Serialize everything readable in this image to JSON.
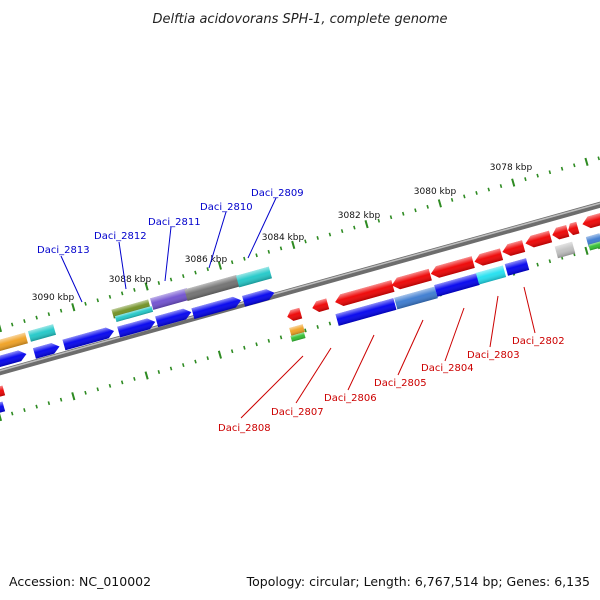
{
  "title": "Delftia acidovorans SPH-1, complete genome",
  "footer": {
    "accession": "Accession: NC_010002",
    "topology": "Topology: circular; Length: 6,767,514 bp; Genes: 6,135"
  },
  "kbp_ticks": [
    "3078 kbp",
    "3080 kbp",
    "3082 kbp",
    "3084 kbp",
    "3086 kbp",
    "3088 kbp",
    "3090 kbp"
  ],
  "colors": {
    "forward_label": "#0000cc",
    "reverse_label": "#cc0000",
    "tick": "#2e8b22",
    "backbone": "#7a7a7a"
  },
  "genes_forward": [
    {
      "label": "Daci_2813"
    },
    {
      "label": "Daci_2812"
    },
    {
      "label": "Daci_2811"
    },
    {
      "label": "Daci_2810"
    },
    {
      "label": "Daci_2809"
    }
  ],
  "genes_reverse": [
    {
      "label": "Daci_2808"
    },
    {
      "label": "Daci_2807"
    },
    {
      "label": "Daci_2806"
    },
    {
      "label": "Daci_2805"
    },
    {
      "label": "Daci_2804"
    },
    {
      "label": "Daci_2803"
    },
    {
      "label": "Daci_2802"
    }
  ]
}
